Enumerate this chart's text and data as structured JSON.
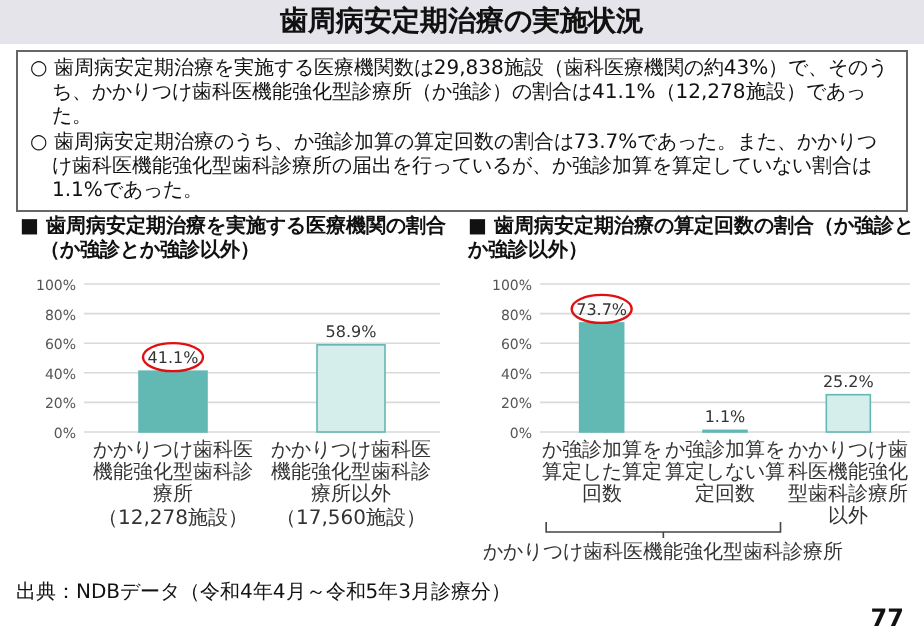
{
  "chart_data": [
    {
      "type": "other",
      "title": "歯周病安定期治療の実施状況",
      "annotations": [
        "○ 歯周病安定期治療を実施する医療機関数は29,838施設（歯科医療機関の約43%）で、そのうち、かかりつけ歯科医機能強化型診療所（か強診）の割合は41.1%（12,278施設）であった。",
        "○ 歯周病安定期治療のうち、か強診加算の算定回数の割合は73.7%であった。また、かかりつけ歯科医機能強化型歯科診療所の届出を行っているが、か強診加算を算定していない割合は1.1%であった。",
        "出典：NDBデータ（令和4年4月～令和5年3月診療分）",
        "77"
      ]
    },
    {
      "type": "bar",
      "title": "■ 歯周病安定期治療を実施する医療機関の割合",
      "subtitle": "（か強診とか強診以外）",
      "categories": [
        "かかりつけ歯科医機能強化型歯科診療所",
        "かかりつけ歯科医機能強化型歯科診療所以外"
      ],
      "values": [
        41.1,
        58.9
      ],
      "value_labels": [
        "41.1%",
        "58.9%"
      ],
      "colors": [
        "#62b8b3",
        "#d5eeec"
      ],
      "ylim": [
        0,
        100
      ],
      "yticks": [
        {
          "value": 0,
          "label": "0%"
        },
        {
          "value": 20,
          "label": "20%"
        },
        {
          "value": 40,
          "label": "40%"
        },
        {
          "value": 60,
          "label": "60%"
        },
        {
          "value": 80,
          "label": "80%"
        },
        {
          "value": 100,
          "label": "100%"
        }
      ],
      "grid": "y",
      "annotations": [
        "（12,278施設）",
        "（17,560施設）"
      ]
    },
    {
      "type": "bar",
      "title": "■ 歯周病安定期治療の算定回数の割合（か強診とか強診以外）",
      "categories": [
        "か強診加算を算定した算定回数",
        "か強診加算を算定しない算定回数",
        "かかりつけ歯科医機能強化型歯科診療所以外"
      ],
      "values": [
        73.7,
        1.1,
        25.2
      ],
      "value_labels": [
        "73.7%",
        "1.1%",
        "25.2%"
      ],
      "colors": [
        "#62b8b3",
        "#62b8b3",
        "#d5eeec"
      ],
      "ylim": [
        0,
        100
      ],
      "yticks": [
        {
          "value": 0,
          "label": "0%"
        },
        {
          "value": 20,
          "label": "20%"
        },
        {
          "value": 40,
          "label": "40%"
        },
        {
          "value": 60,
          "label": "60%"
        },
        {
          "value": 80,
          "label": "80%"
        },
        {
          "value": 100,
          "label": "100%"
        }
      ],
      "grid": "y",
      "annotations": [
        "かかりつけ歯科医機能強化型歯科診療所"
      ]
    }
  ]
}
